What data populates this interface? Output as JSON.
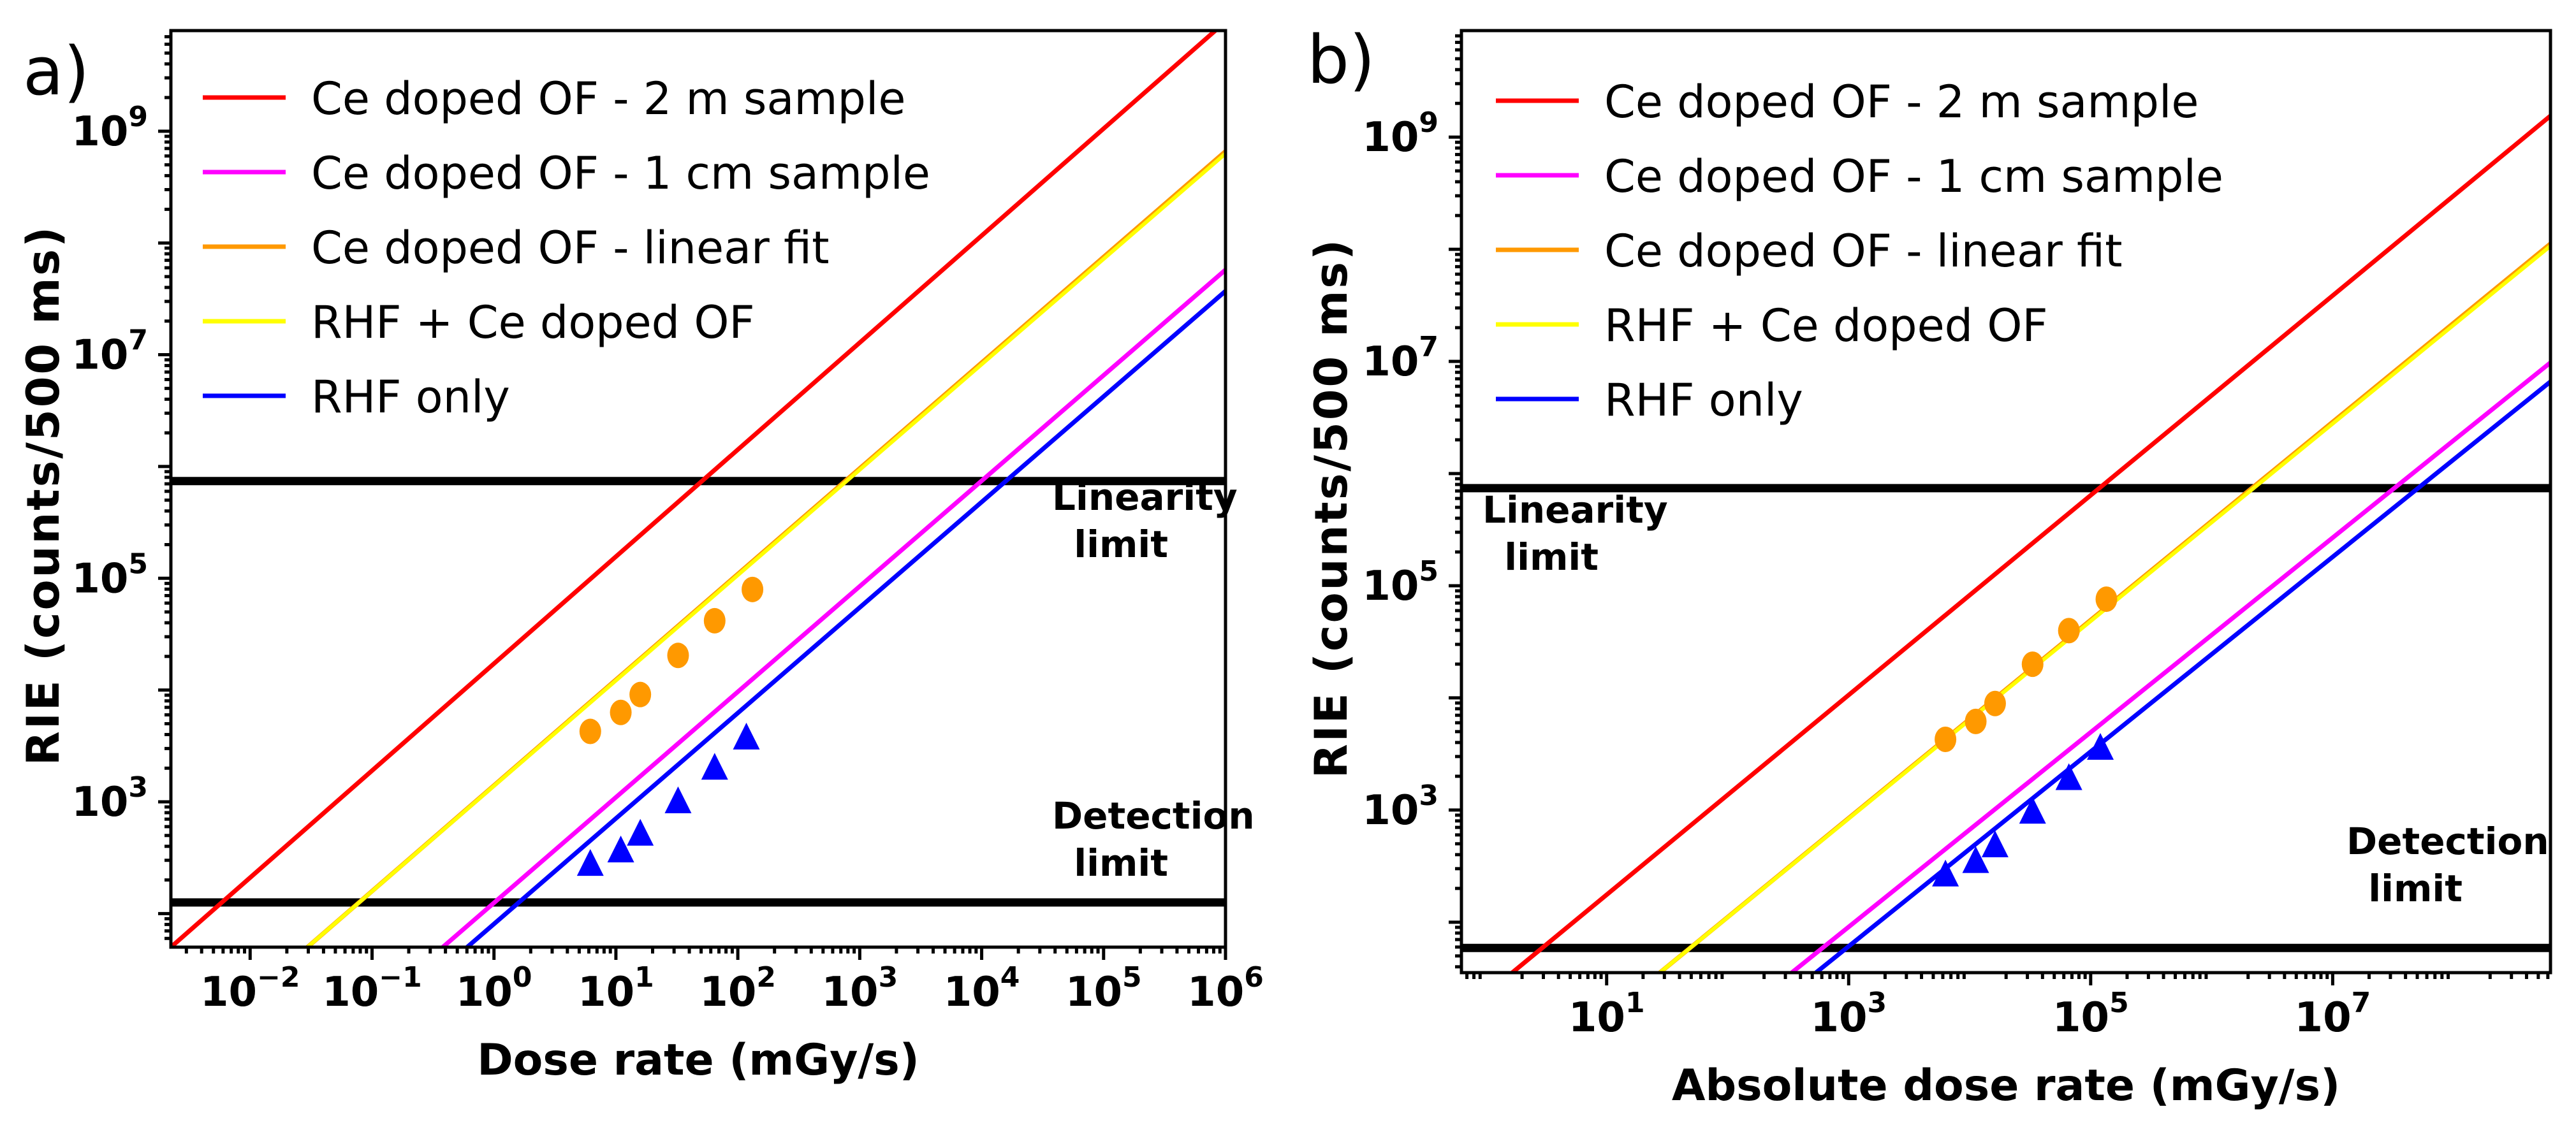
{
  "chart_data": [
    {
      "type": "line",
      "panel_label": "a)",
      "xlabel": "Dose rate (mGy/s)",
      "ylabel": "RIE (counts/500 ms)",
      "xscale": "log",
      "yscale": "log",
      "xlim_log10": [
        -2.65,
        6.0
      ],
      "ylim_log10": [
        1.7,
        9.9
      ],
      "xticks": [
        {
          "exp": -2,
          "label": "10",
          "sup": "−2"
        },
        {
          "exp": -1,
          "label": "10",
          "sup": "−1"
        },
        {
          "exp": 0,
          "label": "10",
          "sup": "0"
        },
        {
          "exp": 1,
          "label": "10",
          "sup": "1"
        },
        {
          "exp": 2,
          "label": "10",
          "sup": "2"
        },
        {
          "exp": 3,
          "label": "10",
          "sup": "3"
        },
        {
          "exp": 4,
          "label": "10",
          "sup": "4"
        },
        {
          "exp": 5,
          "label": "10",
          "sup": "5"
        },
        {
          "exp": 6,
          "label": "10",
          "sup": "6"
        }
      ],
      "yticks": [
        {
          "exp": 3,
          "label": "10",
          "sup": "3"
        },
        {
          "exp": 5,
          "label": "10",
          "sup": "5"
        },
        {
          "exp": 7,
          "label": "10",
          "sup": "7"
        },
        {
          "exp": 9,
          "label": "10",
          "sup": "9"
        }
      ],
      "legend_position": "top-left",
      "series": [
        {
          "name": "Ce doped OF - 2 m sample",
          "color": "#ff0000",
          "kind": "line",
          "log_x": [
            -2.65,
            6.0
          ],
          "log_y": [
            1.7,
            9.98
          ]
        },
        {
          "name": "Ce doped OF - 1 cm sample",
          "color": "#ff00ff",
          "kind": "line",
          "log_x": [
            -0.42,
            6.0
          ],
          "log_y": [
            1.7,
            7.76
          ]
        },
        {
          "name": "Ce doped OF - linear fit",
          "color": "#ff9900",
          "kind": "line",
          "log_x": [
            -1.53,
            6.0
          ],
          "log_y": [
            1.7,
            8.82
          ]
        },
        {
          "name": "RHF + Ce doped OF",
          "color": "#ffff00",
          "kind": "line",
          "log_x": [
            -1.53,
            6.0
          ],
          "log_y": [
            1.7,
            8.8
          ]
        },
        {
          "name": "RHF only",
          "color": "#0000ff",
          "kind": "line",
          "log_x": [
            -0.22,
            6.0
          ],
          "log_y": [
            1.7,
            7.57
          ]
        }
      ],
      "markers": [
        {
          "name": "Ce doped OF data",
          "color": "#ff9900",
          "shape": "circle",
          "points": [
            [
              0.79,
              3.63
            ],
            [
              1.04,
              3.8
            ],
            [
              1.2,
              3.96
            ],
            [
              1.51,
              4.31
            ],
            [
              1.81,
              4.62
            ],
            [
              2.12,
              4.9
            ]
          ]
        },
        {
          "name": "RHF only data",
          "color": "#0000ff",
          "shape": "triangle",
          "points": [
            [
              0.79,
              2.44
            ],
            [
              1.04,
              2.56
            ],
            [
              1.2,
              2.71
            ],
            [
              1.51,
              3.0
            ],
            [
              1.81,
              3.3
            ],
            [
              2.07,
              3.57
            ]
          ]
        }
      ],
      "hlines": [
        {
          "name": "Linearity limit",
          "log_y": 5.87,
          "color": "#000000"
        },
        {
          "name": "Detection limit",
          "log_y": 2.1,
          "color": "#000000"
        }
      ],
      "annotations": [
        {
          "lines": [
            "Linearity",
            " limit"
          ],
          "anchor": "right",
          "near": "Linearity limit"
        },
        {
          "lines": [
            "Detection",
            " limit"
          ],
          "anchor": "right",
          "near": "Detection limit"
        }
      ]
    },
    {
      "type": "line",
      "panel_label": "b)",
      "xlabel": "Absolute dose rate (mGy/s)",
      "ylabel": "RIE (counts/500 ms)",
      "xscale": "log",
      "yscale": "log",
      "xlim_log10": [
        -0.2,
        8.8
      ],
      "ylim_log10": [
        1.55,
        9.95
      ],
      "xticks": [
        {
          "exp": 1,
          "label": "10",
          "sup": "1"
        },
        {
          "exp": 3,
          "label": "10",
          "sup": "3"
        },
        {
          "exp": 5,
          "label": "10",
          "sup": "5"
        },
        {
          "exp": 7,
          "label": "10",
          "sup": "7"
        }
      ],
      "yticks": [
        {
          "exp": 3,
          "label": "10",
          "sup": "3"
        },
        {
          "exp": 5,
          "label": "10",
          "sup": "5"
        },
        {
          "exp": 7,
          "label": "10",
          "sup": "7"
        },
        {
          "exp": 9,
          "label": "10",
          "sup": "9"
        }
      ],
      "legend_position": "top-left",
      "series": [
        {
          "name": "Ce doped OF - 2 m sample",
          "color": "#ff0000",
          "kind": "line",
          "log_x": [
            0.22,
            8.8
          ],
          "log_y": [
            1.55,
            9.19
          ]
        },
        {
          "name": "Ce doped OF - 1 cm sample",
          "color": "#ff00ff",
          "kind": "line",
          "log_x": [
            2.53,
            8.8
          ],
          "log_y": [
            1.55,
            6.99
          ]
        },
        {
          "name": "Ce doped OF - linear fit",
          "color": "#ff9900",
          "kind": "line",
          "log_x": [
            1.44,
            8.8
          ],
          "log_y": [
            1.55,
            8.05
          ]
        },
        {
          "name": "RHF + Ce doped OF",
          "color": "#ffff00",
          "kind": "line",
          "log_x": [
            1.44,
            8.8
          ],
          "log_y": [
            1.55,
            8.03
          ]
        },
        {
          "name": "RHF only",
          "color": "#0000ff",
          "kind": "line",
          "log_x": [
            2.73,
            8.8
          ],
          "log_y": [
            1.55,
            6.82
          ]
        }
      ],
      "markers": [
        {
          "name": "Ce doped OF data",
          "color": "#ff9900",
          "shape": "circle",
          "points": [
            [
              3.8,
              3.63
            ],
            [
              4.05,
              3.79
            ],
            [
              4.21,
              3.95
            ],
            [
              4.52,
              4.3
            ],
            [
              4.82,
              4.6
            ],
            [
              5.13,
              4.88
            ]
          ]
        },
        {
          "name": "RHF only data",
          "color": "#0000ff",
          "shape": "triangle",
          "points": [
            [
              3.8,
              2.42
            ],
            [
              4.05,
              2.54
            ],
            [
              4.21,
              2.68
            ],
            [
              4.52,
              2.98
            ],
            [
              4.82,
              3.28
            ],
            [
              5.08,
              3.55
            ]
          ]
        }
      ],
      "hlines": [
        {
          "name": "Linearity limit",
          "log_y": 5.87,
          "color": "#000000"
        },
        {
          "name": "Detection limit",
          "log_y": 1.77,
          "color": "#000000"
        }
      ],
      "annotations": [
        {
          "lines": [
            "Linearity",
            " limit"
          ],
          "anchor": "left",
          "near": "Linearity limit"
        },
        {
          "lines": [
            "Detection",
            " limit"
          ],
          "anchor": "right",
          "near": "Detection limit"
        }
      ]
    }
  ]
}
